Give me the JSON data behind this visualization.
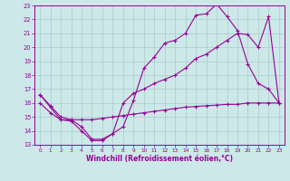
{
  "xlabel": "Windchill (Refroidissement éolien,°C)",
  "background_color": "#cce8e8",
  "line_color": "#990099",
  "grid_color": "#aacccc",
  "xlim": [
    -0.5,
    23.5
  ],
  "ylim": [
    13,
    23
  ],
  "yticks": [
    13,
    14,
    15,
    16,
    17,
    18,
    19,
    20,
    21,
    22,
    23
  ],
  "xticks": [
    0,
    1,
    2,
    3,
    4,
    5,
    6,
    7,
    8,
    9,
    10,
    11,
    12,
    13,
    14,
    15,
    16,
    17,
    18,
    19,
    20,
    21,
    22,
    23
  ],
  "line_upper_x": [
    0,
    1,
    2,
    3,
    4,
    5,
    6,
    7,
    8,
    9,
    10,
    11,
    12,
    13,
    14,
    15,
    16,
    17,
    18,
    19,
    20,
    21,
    22,
    23
  ],
  "line_upper_y": [
    16.6,
    15.7,
    14.8,
    14.7,
    14.0,
    13.3,
    13.3,
    13.8,
    14.3,
    16.2,
    18.5,
    19.3,
    20.3,
    20.5,
    21.0,
    22.3,
    22.4,
    23.1,
    22.2,
    21.2,
    18.8,
    17.4,
    17.0,
    16.0
  ],
  "line_mid_x": [
    0,
    1,
    2,
    3,
    4,
    5,
    6,
    7,
    8,
    9,
    10,
    11,
    12,
    13,
    14,
    15,
    16,
    17,
    18,
    19,
    20,
    21,
    22,
    23
  ],
  "line_mid_y": [
    16.6,
    15.8,
    15.0,
    14.8,
    14.3,
    13.4,
    13.4,
    13.8,
    16.0,
    16.7,
    17.0,
    17.4,
    17.7,
    18.0,
    18.5,
    19.2,
    19.5,
    20.0,
    20.5,
    21.0,
    20.9,
    20.0,
    22.2,
    16.0
  ],
  "line_low_x": [
    0,
    1,
    2,
    3,
    4,
    5,
    6,
    7,
    8,
    9,
    10,
    11,
    12,
    13,
    14,
    15,
    16,
    17,
    18,
    19,
    20,
    21,
    22,
    23
  ],
  "line_low_y": [
    16.0,
    15.3,
    14.8,
    14.8,
    14.8,
    14.8,
    14.9,
    15.0,
    15.1,
    15.2,
    15.3,
    15.4,
    15.5,
    15.6,
    15.7,
    15.75,
    15.8,
    15.85,
    15.9,
    15.9,
    16.0,
    16.0,
    16.0,
    16.0
  ]
}
